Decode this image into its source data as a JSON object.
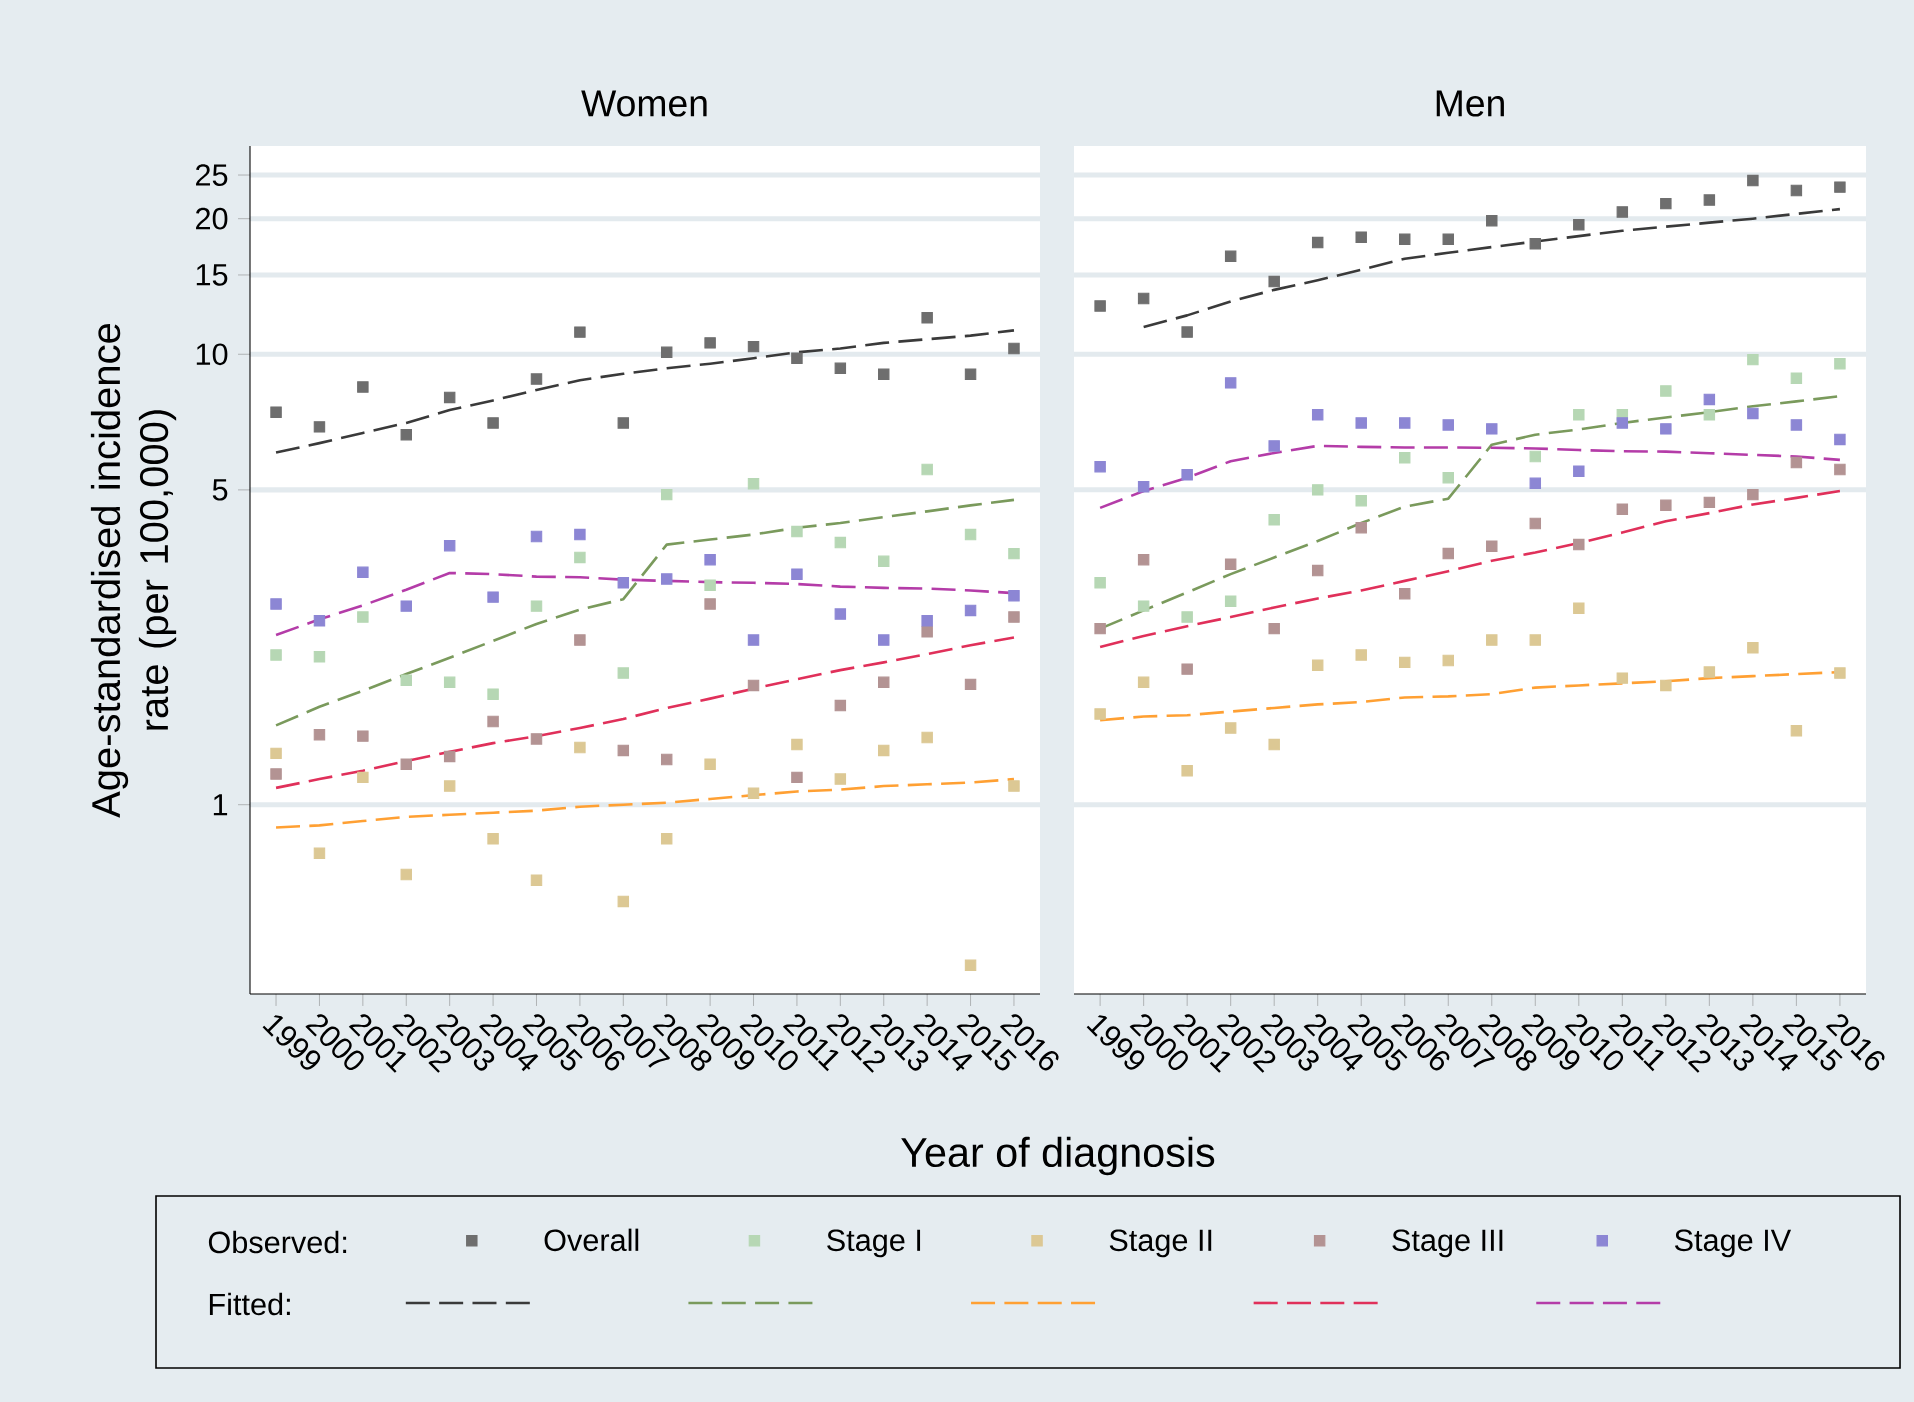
{
  "chart_data": [
    {
      "type": "scatter",
      "title": "Women",
      "xlabel": "Year of diagnosis",
      "ylabel": "Age-standardised incidence rate (per 100,000)",
      "annotations": [
        "Observed:",
        "Fitted:"
      ],
      "legend": "bottom",
      "log": true,
      "grid": "y",
      "x": [
        1999,
        2000,
        2001,
        2002,
        2003,
        2004,
        2005,
        2006,
        2007,
        2008,
        2009,
        2010,
        2011,
        2012,
        2013,
        2014,
        2015,
        2016
      ],
      "xlim": [
        1998.4,
        2016.6
      ],
      "xticks": [
        1999,
        2000,
        2001,
        2002,
        2003,
        2004,
        2005,
        2006,
        2007,
        2008,
        2009,
        2010,
        2011,
        2012,
        2013,
        2014,
        2015,
        2016
      ],
      "ylim": [
        0.38,
        29
      ],
      "yticks": [
        1,
        5,
        10,
        15,
        20,
        25
      ],
      "series": [
        {
          "name": "Overall",
          "marker": "square",
          "color": "#6e6e6e",
          "values": [
            7.44,
            6.9,
            8.46,
            6.63,
            8.02,
            7.04,
            8.81,
            11.2,
            7.04,
            10.1,
            10.6,
            10.4,
            9.8,
            9.31,
            9.03,
            12.05,
            9.03,
            10.3
          ]
        },
        {
          "name": "Stage I",
          "marker": "square",
          "color": "#b6d7b4",
          "values": [
            2.15,
            2.13,
            2.61,
            1.89,
            1.87,
            1.76,
            2.76,
            3.54,
            1.96,
            4.88,
            3.07,
            5.16,
            4.04,
            3.82,
            3.47,
            5.55,
            3.98,
            3.61
          ]
        },
        {
          "name": "Stage II",
          "marker": "square",
          "color": "#dcc894",
          "values": [
            1.3,
            0.78,
            1.15,
            0.7,
            1.1,
            0.84,
            0.68,
            1.34,
            0.61,
            0.84,
            1.23,
            1.06,
            1.36,
            1.14,
            1.32,
            1.41,
            0.44,
            1.1
          ]
        },
        {
          "name": "Stage III",
          "marker": "square",
          "color": "#b39393",
          "values": [
            1.17,
            1.43,
            1.42,
            1.23,
            1.28,
            1.53,
            1.4,
            2.32,
            1.32,
            1.26,
            2.79,
            1.84,
            1.15,
            1.66,
            1.87,
            2.42,
            1.85,
            2.61
          ]
        },
        {
          "name": "Stage IV",
          "marker": "square",
          "color": "#8c86d4",
          "values": [
            2.79,
            2.56,
            3.28,
            2.76,
            3.76,
            2.89,
            3.94,
            3.98,
            3.11,
            3.17,
            3.5,
            2.32,
            3.25,
            2.65,
            2.32,
            2.56,
            2.7,
            2.91
          ]
        },
        {
          "type": "line",
          "marker": "none",
          "line_style": "dashed",
          "color": "#3a3a3a",
          "values": [
            6.05,
            6.35,
            6.69,
            7.04,
            7.52,
            7.9,
            8.33,
            8.76,
            9.05,
            9.31,
            9.53,
            9.8,
            10.1,
            10.3,
            10.6,
            10.8,
            11.0,
            11.3
          ]
        },
        {
          "type": "line",
          "marker": "none",
          "line_style": "dashed",
          "color": "#7a9a5c",
          "values": [
            1.5,
            1.65,
            1.79,
            1.95,
            2.12,
            2.31,
            2.52,
            2.71,
            2.86,
            3.78,
            3.88,
            3.98,
            4.12,
            4.22,
            4.35,
            4.48,
            4.62,
            4.75
          ]
        },
        {
          "type": "line",
          "marker": "none",
          "line_style": "dashed",
          "color": "#ffa033",
          "values": [
            0.89,
            0.9,
            0.92,
            0.94,
            0.95,
            0.96,
            0.97,
            0.99,
            1.0,
            1.01,
            1.03,
            1.05,
            1.07,
            1.08,
            1.1,
            1.11,
            1.12,
            1.14
          ]
        },
        {
          "type": "line",
          "marker": "none",
          "line_style": "dashed",
          "color": "#e0305a",
          "values": [
            1.09,
            1.14,
            1.19,
            1.25,
            1.31,
            1.37,
            1.42,
            1.48,
            1.55,
            1.64,
            1.72,
            1.81,
            1.9,
            1.99,
            2.07,
            2.16,
            2.26,
            2.35
          ]
        },
        {
          "type": "line",
          "marker": "none",
          "line_style": "dashed",
          "color": "#b43ca8",
          "values": [
            2.38,
            2.58,
            2.77,
            3.0,
            3.27,
            3.25,
            3.21,
            3.2,
            3.16,
            3.14,
            3.12,
            3.11,
            3.09,
            3.05,
            3.03,
            3.02,
            2.99,
            2.95
          ]
        }
      ]
    },
    {
      "type": "scatter",
      "title": "Men",
      "tick_labels": "x",
      "log": true,
      "grid": "y",
      "x": [
        1999,
        2000,
        2001,
        2002,
        2003,
        2004,
        2005,
        2006,
        2007,
        2008,
        2009,
        2010,
        2011,
        2012,
        2013,
        2014,
        2015,
        2016
      ],
      "xlim": [
        1998.4,
        2016.6
      ],
      "xticks": [
        1999,
        2000,
        2001,
        2002,
        2003,
        2004,
        2005,
        2006,
        2007,
        2008,
        2009,
        2010,
        2011,
        2012,
        2013,
        2014,
        2015,
        2016
      ],
      "ylim": [
        0.38,
        29
      ],
      "yticks": [
        1,
        5,
        10,
        15,
        20,
        25
      ],
      "series": [
        {
          "marker": "square",
          "color": "#6e6e6e",
          "values": [
            12.8,
            13.3,
            11.2,
            16.5,
            14.5,
            17.7,
            18.2,
            18.0,
            18.0,
            19.8,
            17.6,
            19.4,
            20.7,
            21.6,
            22.0,
            24.3,
            23.1,
            23.5
          ]
        },
        {
          "marker": "square",
          "color": "#b6d7b4",
          "values": [
            3.11,
            2.76,
            2.61,
            2.83,
            4.29,
            5.0,
            4.73,
            5.89,
            5.32,
            null,
            5.93,
            7.34,
            7.34,
            8.29,
            7.34,
            9.73,
            8.85,
            9.53
          ]
        },
        {
          "marker": "square",
          "color": "#dcc894",
          "values": [
            1.59,
            1.87,
            1.19,
            1.48,
            1.36,
            2.04,
            2.15,
            2.07,
            2.09,
            2.32,
            2.32,
            2.73,
            1.91,
            1.84,
            1.97,
            2.23,
            1.46,
            1.96
          ]
        },
        {
          "marker": "square",
          "color": "#b39393",
          "values": [
            2.46,
            3.5,
            2.0,
            3.42,
            2.46,
            3.31,
            4.12,
            2.94,
            3.61,
            3.75,
            4.21,
            3.78,
            4.53,
            4.62,
            4.69,
            4.88,
            5.75,
            5.55
          ]
        },
        {
          "marker": "square",
          "color": "#8c86d4",
          "values": [
            5.63,
            5.08,
            5.4,
            8.64,
            6.26,
            7.34,
            7.04,
            7.04,
            6.97,
            6.83,
            5.17,
            5.5,
            7.04,
            6.83,
            7.94,
            7.39,
            6.97,
            6.47
          ]
        },
        {
          "type": "line",
          "marker": "none",
          "line_style": "dashed",
          "color": "#3a3a3a",
          "values": [
            null,
            11.5,
            12.2,
            13.1,
            13.9,
            14.6,
            15.4,
            16.3,
            16.8,
            17.3,
            17.8,
            18.3,
            18.8,
            19.2,
            19.6,
            20.0,
            20.5,
            21.0
          ]
        },
        {
          "type": "line",
          "marker": "none",
          "line_style": "dashed",
          "color": "#7a9a5c",
          "values": [
            2.46,
            2.7,
            2.96,
            3.25,
            3.54,
            3.85,
            4.22,
            4.59,
            4.78,
            6.3,
            6.63,
            6.81,
            7.04,
            7.24,
            7.44,
            7.67,
            7.86,
            8.07
          ]
        },
        {
          "type": "line",
          "marker": "none",
          "line_style": "dashed",
          "color": "#ffa033",
          "values": [
            1.54,
            1.57,
            1.58,
            1.61,
            1.64,
            1.67,
            1.69,
            1.73,
            1.74,
            1.76,
            1.82,
            1.84,
            1.86,
            1.88,
            1.91,
            1.93,
            1.95,
            1.97
          ]
        },
        {
          "type": "line",
          "marker": "none",
          "line_style": "dashed",
          "color": "#e0305a",
          "values": [
            2.24,
            2.37,
            2.49,
            2.61,
            2.74,
            2.87,
            2.99,
            3.14,
            3.3,
            3.48,
            3.63,
            3.81,
            4.02,
            4.26,
            4.44,
            4.64,
            4.8,
            4.97
          ]
        },
        {
          "type": "line",
          "marker": "none",
          "line_style": "dashed",
          "color": "#b43ca8",
          "values": [
            4.56,
            4.97,
            5.32,
            5.79,
            6.04,
            6.26,
            6.23,
            6.21,
            6.21,
            6.2,
            6.18,
            6.13,
            6.09,
            6.08,
            6.03,
            5.98,
            5.93,
            5.83
          ]
        }
      ]
    }
  ]
}
